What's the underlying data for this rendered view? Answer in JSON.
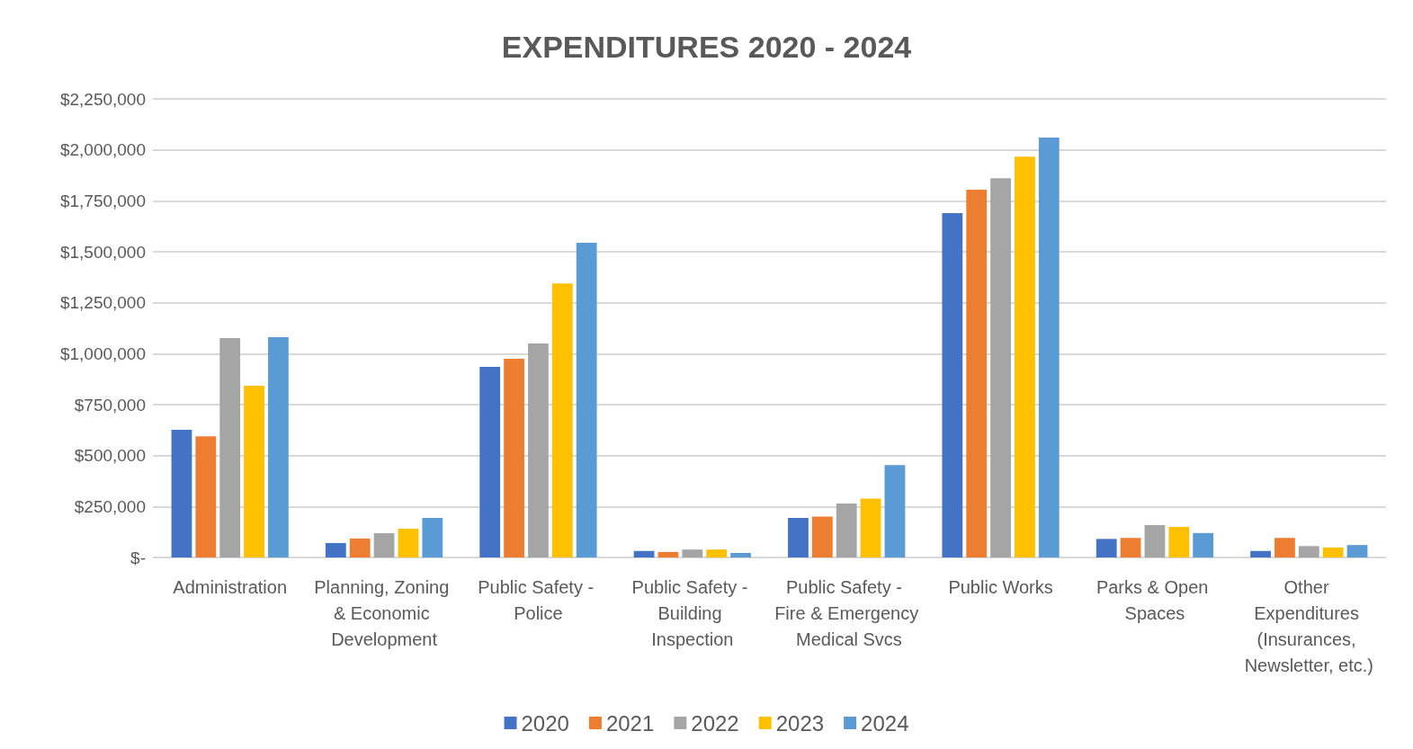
{
  "chart_data": {
    "type": "bar",
    "title": "EXPENDITURES 2020 - 2024",
    "categories": [
      "Administration",
      "Planning, Zoning & Economic Development",
      "Public Safety - Police",
      "Public Safety - Building Inspection",
      "Public Safety - Fire & Emergency Medical Svcs",
      "Public Works",
      "Parks & Open Spaces",
      "Other Expenditures (Insurances, Newsletter, etc.)"
    ],
    "series": [
      {
        "name": "2020",
        "color": "#4472c4",
        "values": [
          626000,
          71000,
          935000,
          32000,
          194000,
          1690000,
          91000,
          32000
        ]
      },
      {
        "name": "2021",
        "color": "#ed7d31",
        "values": [
          595000,
          93000,
          975000,
          27000,
          201000,
          1804000,
          96000,
          96000
        ]
      },
      {
        "name": "2022",
        "color": "#a5a5a5",
        "values": [
          1077000,
          119000,
          1050000,
          39000,
          265000,
          1861000,
          159000,
          56000
        ]
      },
      {
        "name": "2023",
        "color": "#ffc000",
        "values": [
          843000,
          141000,
          1345000,
          39000,
          289000,
          1967000,
          150000,
          49000
        ]
      },
      {
        "name": "2024",
        "color": "#5b9bd5",
        "values": [
          1081000,
          194000,
          1544000,
          22000,
          453000,
          2060000,
          120000,
          61000
        ]
      }
    ],
    "ylim": [
      0,
      2250000
    ],
    "yticks": [
      {
        "value": 0,
        "label": "$-"
      },
      {
        "value": 250000,
        "label": "$250,000"
      },
      {
        "value": 500000,
        "label": "$500,000"
      },
      {
        "value": 750000,
        "label": "$750,000"
      },
      {
        "value": 1000000,
        "label": "$1,000,000"
      },
      {
        "value": 1250000,
        "label": "$1,250,000"
      },
      {
        "value": 1500000,
        "label": "$1,500,000"
      },
      {
        "value": 1750000,
        "label": "$1,750,000"
      },
      {
        "value": 2000000,
        "label": "$2,000,000"
      },
      {
        "value": 2250000,
        "label": "$2,250,000"
      }
    ],
    "grid": "y",
    "legend": "bottom"
  }
}
